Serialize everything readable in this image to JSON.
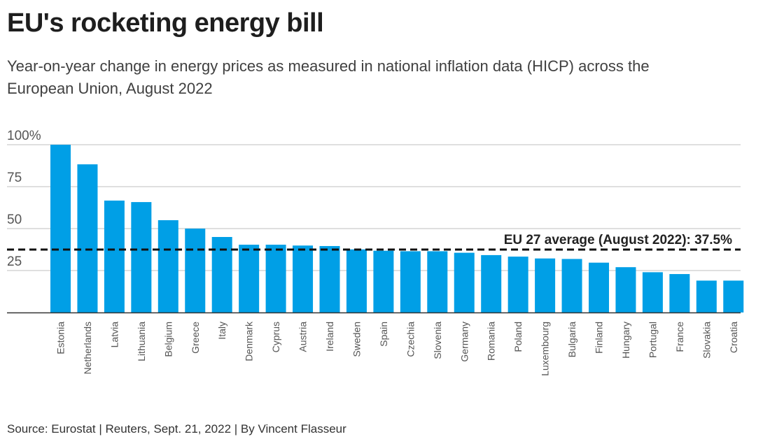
{
  "header": {
    "title": "EU's rocketing energy bill",
    "subtitle": "Year-on-year change in energy prices as measured in national inflation data (HICP) across the European Union, August 2022"
  },
  "footer": {
    "source": "Source: Eurostat | Reuters, Sept. 21, 2022 | By Vincent Flasseur"
  },
  "colors": {
    "bar": "#009fe6",
    "grid": "#cccccc",
    "axis": "#333333",
    "average_line": "#111111"
  },
  "chart_data": {
    "type": "bar",
    "title": "EU's rocketing energy bill",
    "subtitle": "Year-on-year change in energy prices as measured in national inflation data (HICP) across the European Union, August 2022",
    "xlabel": "",
    "ylabel": "",
    "unit": "%",
    "ylim": [
      0,
      100
    ],
    "yticks": [
      0,
      25,
      50,
      75,
      100
    ],
    "ytick_labels": [
      "",
      "25",
      "50",
      "75",
      "100%"
    ],
    "grid": true,
    "categories": [
      "Estonia",
      "Netherlands",
      "Latvia",
      "Lithuania",
      "Belgium",
      "Greece",
      "Italy",
      "Denmark",
      "Cyprus",
      "Austria",
      "Ireland",
      "Sweden",
      "Spain",
      "Czechia",
      "Slovenia",
      "Germany",
      "Romania",
      "Poland",
      "Luxembourg",
      "Bulgaria",
      "Finland",
      "Hungary",
      "Portugal",
      "France",
      "Slovakia",
      "Croatia"
    ],
    "values": [
      100.0,
      88.3,
      66.7,
      65.8,
      55.0,
      50.0,
      45.0,
      40.4,
      40.4,
      39.9,
      39.6,
      37.6,
      36.8,
      36.5,
      36.5,
      35.6,
      34.2,
      33.3,
      32.2,
      31.9,
      29.7,
      27.0,
      24.0,
      22.9,
      19.0,
      19.0
    ],
    "reference_line": {
      "value": 37.5,
      "label": "EU 27 average (August 2022): 37.5%",
      "style": "dashed"
    }
  }
}
